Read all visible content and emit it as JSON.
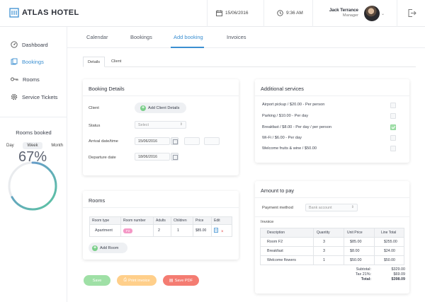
{
  "app": {
    "name": "ATLAS HOTEL"
  },
  "topbar": {
    "date": "15/06/2016",
    "time": "9:36 AM",
    "user_name": "Jack Terrance",
    "user_role": "Manager"
  },
  "sidebar": {
    "items": [
      {
        "label": "Dashboard",
        "icon": "dashboard-icon"
      },
      {
        "label": "Bookings",
        "icon": "bookings-icon"
      },
      {
        "label": "Rooms",
        "icon": "key-icon"
      },
      {
        "label": "Service Tickets",
        "icon": "gear-icon"
      }
    ],
    "rooms_booked": {
      "title": "Rooms booked",
      "periods": [
        "Day",
        "Week",
        "Month"
      ],
      "selected": "Week",
      "value_label": "67%",
      "fraction": 0.67
    }
  },
  "tabs": [
    "Calendar",
    "Bookings",
    "Add booking",
    "Invoices"
  ],
  "active_tab": "Add booking",
  "subtabs": [
    "Details",
    "Client"
  ],
  "booking_details": {
    "title": "Booking Details",
    "client_label": "Client",
    "add_client_label": "Add Client Details",
    "status_label": "Status",
    "status_placeholder": "Select",
    "arrival_label": "Arrival date/time",
    "arrival_value": "15/06/2016",
    "departure_label": "Departure date",
    "departure_value": "18/06/2016"
  },
  "additional_services": {
    "title": "Additional services",
    "items": [
      {
        "label": "Airport pickup / $20.00 - Per person",
        "checked": false
      },
      {
        "label": "Parking / $10.00 - Per day",
        "checked": false
      },
      {
        "label": "Breakfast / $8.00 - Per day / per person",
        "checked": true
      },
      {
        "label": "Wi-Fi / $6.00 - Per day",
        "checked": false
      },
      {
        "label": "Welcome fruits & wine / $50.00",
        "checked": false
      }
    ]
  },
  "rooms": {
    "title": "Rooms",
    "columns": [
      "Room type",
      "Room number",
      "Adults",
      "Children",
      "Price",
      "Edit"
    ],
    "rows": [
      {
        "type": "Apartment",
        "number": "F2",
        "adults": "2",
        "children": "1",
        "price": "$85.00"
      }
    ],
    "add_room_label": "Add Room"
  },
  "amount_to_pay": {
    "title": "Amount to pay",
    "payment_method_label": "Payment method",
    "payment_method_value": "Bank account",
    "invoice_label": "Invoice",
    "columns": [
      "Description",
      "Quantity",
      "Unit Price",
      "Line Total"
    ],
    "rows": [
      {
        "desc": "Room F2",
        "qty": "3",
        "unit": "$85.00",
        "total": "$255.00"
      },
      {
        "desc": "Breakfast",
        "qty": "3",
        "unit": "$8.00",
        "total": "$24.00"
      },
      {
        "desc": "Welcome flowers",
        "qty": "1",
        "unit": "$50.00",
        "total": "$50.00"
      }
    ],
    "subtotal_label": "Subtotal:",
    "subtotal_value": "$329.00",
    "tax_label": "Tax 21%:",
    "tax_value": "$69.09",
    "total_label": "Total:",
    "total_value": "$398.09"
  },
  "actions": {
    "save": "Save",
    "print": "Print invoice",
    "pdf": "Save PDF"
  },
  "colors": {
    "accent": "#3b8fd1",
    "save": "#9fe0a6",
    "print": "#ffcf8a",
    "pdf": "#f47c72",
    "gauge_start": "#5bc6a0",
    "gauge_end": "#6b8fd6"
  }
}
